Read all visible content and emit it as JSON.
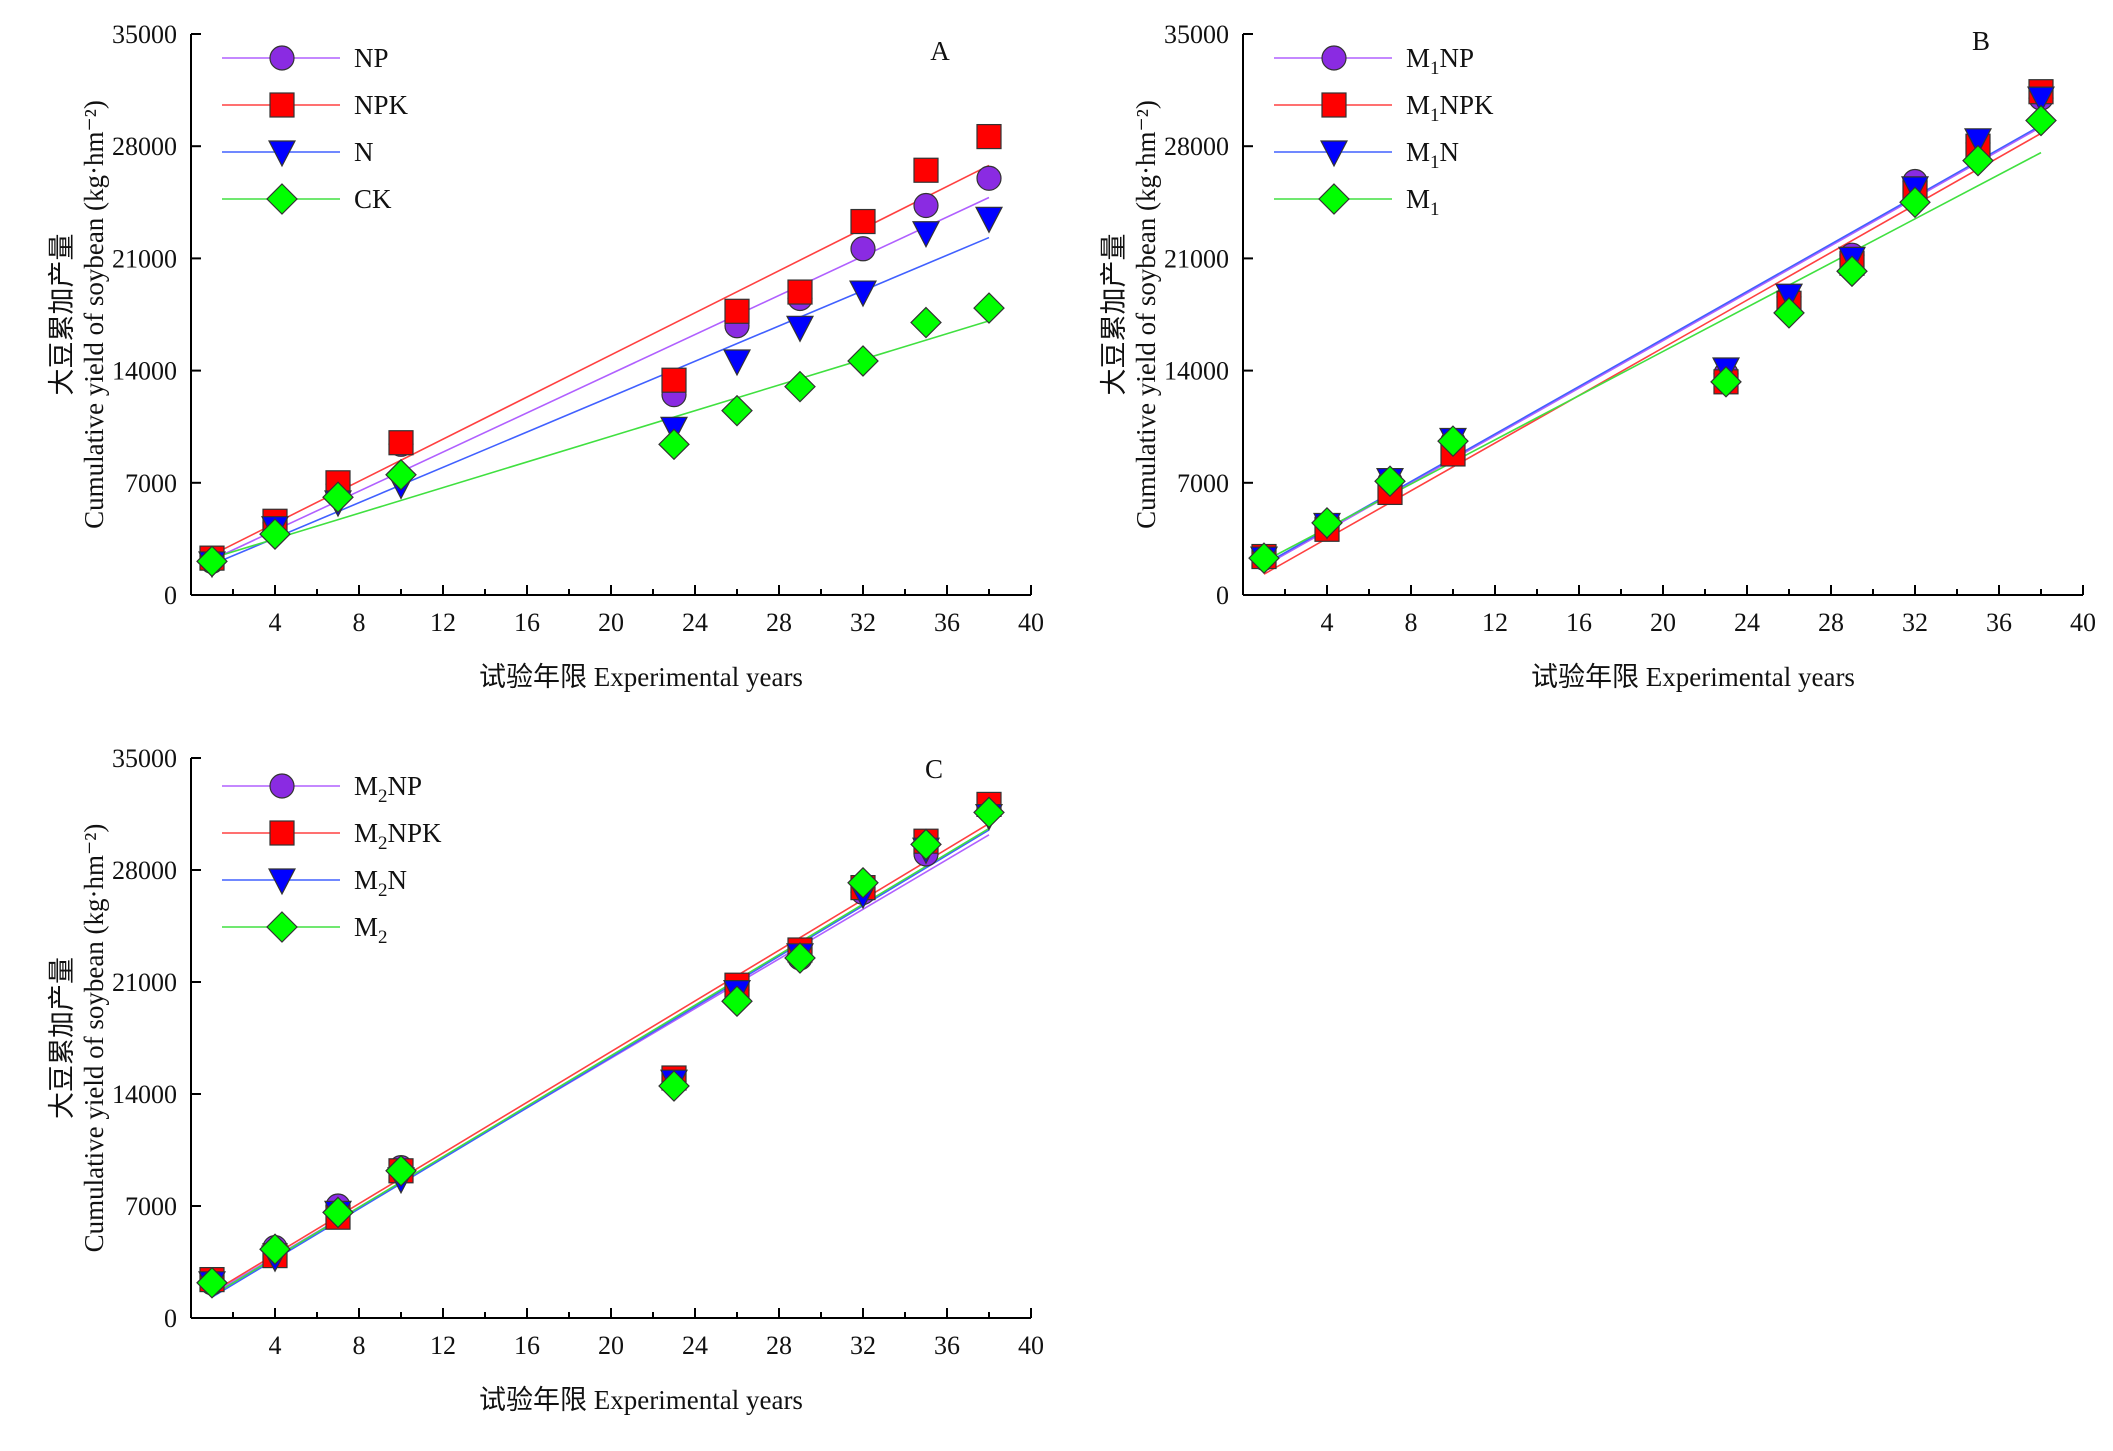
{
  "chart_data": [
    {
      "type": "scatter",
      "panel_label": "A",
      "xlabel": "试验年限 Experimental years",
      "ylabel_cn": "大豆累加产量",
      "ylabel": "Cumulative yield of soybean (kg·hm⁻²)",
      "xlim": [
        0,
        40
      ],
      "ylim": [
        0,
        35000
      ],
      "xticks": [
        4,
        8,
        12,
        16,
        20,
        24,
        28,
        32,
        36,
        40
      ],
      "yticks": [
        0,
        7000,
        14000,
        21000,
        28000,
        35000
      ],
      "series": [
        {
          "name": "NP",
          "marker": "circle",
          "color": "#8a2be2",
          "line_color": "#b060ff",
          "x": [
            1,
            4,
            7,
            10,
            23,
            26,
            29,
            32,
            35,
            38
          ],
          "y": [
            2100,
            4500,
            6900,
            9400,
            12500,
            16800,
            18500,
            21600,
            24300,
            26000
          ],
          "fit": [
            [
              1,
              2200
            ],
            [
              38,
              24800
            ]
          ]
        },
        {
          "name": "NPK",
          "marker": "square",
          "color": "#ff0000",
          "line_color": "#ff4040",
          "x": [
            1,
            4,
            7,
            10,
            23,
            26,
            29,
            32,
            35,
            38
          ],
          "y": [
            2300,
            4600,
            7000,
            9500,
            13400,
            17700,
            18900,
            23300,
            26500,
            28600
          ],
          "fit": [
            [
              1,
              2500
            ],
            [
              38,
              26800
            ]
          ]
        },
        {
          "name": "N",
          "marker": "triangle-down",
          "color": "#0000ff",
          "line_color": "#4060ff",
          "x": [
            1,
            4,
            7,
            10,
            23,
            26,
            29,
            32,
            35,
            38
          ],
          "y": [
            2000,
            4200,
            5800,
            6900,
            10400,
            14600,
            16700,
            18900,
            22600,
            23500
          ],
          "fit": [
            [
              1,
              1900
            ],
            [
              38,
              22300
            ]
          ]
        },
        {
          "name": "CK",
          "marker": "diamond",
          "color": "#00ff00",
          "line_color": "#40e040",
          "x": [
            1,
            4,
            7,
            10,
            23,
            26,
            29,
            32,
            35,
            38
          ],
          "y": [
            2100,
            3800,
            6100,
            7500,
            9400,
            11500,
            13000,
            14600,
            17000,
            17900
          ],
          "fit": [
            [
              1,
              2300
            ],
            [
              38,
              17100
            ]
          ]
        }
      ]
    },
    {
      "type": "scatter",
      "panel_label": "B",
      "xlabel": "试验年限 Experimental years",
      "ylabel_cn": "大豆累加产量",
      "ylabel": "Cumulative yield of soybean (kg·hm⁻²)",
      "xlim": [
        0,
        40
      ],
      "ylim": [
        0,
        35000
      ],
      "xticks": [
        4,
        8,
        12,
        16,
        20,
        24,
        28,
        32,
        36,
        40
      ],
      "yticks": [
        0,
        7000,
        14000,
        21000,
        28000,
        35000
      ],
      "series": [
        {
          "name": "M1NP",
          "name_main": "M",
          "name_sub": "1",
          "name_rest": "NP",
          "marker": "circle",
          "color": "#8a2be2",
          "line_color": "#b060ff",
          "x": [
            1,
            4,
            7,
            10,
            23,
            26,
            29,
            32,
            35,
            38
          ],
          "y": [
            2300,
            4300,
            7100,
            9600,
            13800,
            18600,
            21200,
            25800,
            28200,
            31000
          ],
          "fit": [
            [
              1,
              1800
            ],
            [
              38,
              29200
            ]
          ]
        },
        {
          "name": "M1NPK",
          "name_main": "M",
          "name_sub": "1",
          "name_rest": "NPK",
          "marker": "square",
          "color": "#ff0000",
          "line_color": "#ff4040",
          "x": [
            1,
            4,
            7,
            10,
            23,
            26,
            29,
            32,
            35,
            38
          ],
          "y": [
            2400,
            4100,
            6400,
            8800,
            13300,
            18200,
            20700,
            25200,
            28000,
            31400
          ],
          "fit": [
            [
              1,
              1300
            ],
            [
              38,
              28800
            ]
          ]
        },
        {
          "name": "M1N",
          "name_main": "M",
          "name_sub": "1",
          "name_rest": "N",
          "marker": "triangle-down",
          "color": "#0000ff",
          "line_color": "#4060ff",
          "x": [
            1,
            4,
            7,
            10,
            23,
            26,
            29,
            32,
            35,
            38
          ],
          "y": [
            2300,
            4400,
            7200,
            9700,
            14100,
            18700,
            21000,
            25400,
            28400,
            31000
          ],
          "fit": [
            [
              1,
              1900
            ],
            [
              38,
              29300
            ]
          ]
        },
        {
          "name": "M1",
          "name_main": "M",
          "name_sub": "1",
          "name_rest": "",
          "marker": "diamond",
          "color": "#00ff00",
          "line_color": "#40e040",
          "x": [
            1,
            4,
            7,
            10,
            23,
            26,
            29,
            32,
            35,
            38
          ],
          "y": [
            2300,
            4500,
            7100,
            9600,
            13300,
            17600,
            20200,
            24500,
            27100,
            29600
          ],
          "fit": [
            [
              1,
              2100
            ],
            [
              38,
              27600
            ]
          ]
        }
      ]
    },
    {
      "type": "scatter",
      "panel_label": "C",
      "xlabel": "试验年限 Experimental years",
      "ylabel_cn": "大豆累加产量",
      "ylabel": "Cumulative yield of soybean (kg·hm⁻²)",
      "xlim": [
        0,
        40
      ],
      "ylim": [
        0,
        35000
      ],
      "xticks": [
        4,
        8,
        12,
        16,
        20,
        24,
        28,
        32,
        36,
        40
      ],
      "yticks": [
        0,
        7000,
        14000,
        21000,
        28000,
        35000
      ],
      "series": [
        {
          "name": "M2NP",
          "name_main": "M",
          "name_sub": "2",
          "name_rest": "NP",
          "marker": "circle",
          "color": "#8a2be2",
          "line_color": "#b060ff",
          "x": [
            1,
            4,
            7,
            10,
            23,
            26,
            29,
            32,
            35,
            38
          ],
          "y": [
            2200,
            4400,
            7000,
            9400,
            14800,
            20500,
            22500,
            26600,
            29000,
            31800
          ],
          "fit": [
            [
              1,
              1500
            ],
            [
              38,
              30200
            ]
          ]
        },
        {
          "name": "M2NPK",
          "name_main": "M",
          "name_sub": "2",
          "name_rest": "NPK",
          "marker": "square",
          "color": "#ff0000",
          "line_color": "#ff4040",
          "x": [
            1,
            4,
            7,
            10,
            23,
            26,
            29,
            32,
            35,
            38
          ],
          "y": [
            2400,
            3900,
            6300,
            9200,
            15000,
            20800,
            23000,
            26900,
            29800,
            32100
          ],
          "fit": [
            [
              1,
              1600
            ],
            [
              38,
              30900
            ]
          ]
        },
        {
          "name": "M2N",
          "name_main": "M",
          "name_sub": "2",
          "name_rest": "N",
          "marker": "triangle-down",
          "color": "#0000ff",
          "line_color": "#4060ff",
          "x": [
            1,
            4,
            7,
            10,
            23,
            26,
            29,
            32,
            35,
            38
          ],
          "y": [
            2200,
            3800,
            6600,
            8700,
            14800,
            20400,
            22700,
            26500,
            29300,
            31400
          ],
          "fit": [
            [
              1,
              1300
            ],
            [
              38,
              30500
            ]
          ]
        },
        {
          "name": "M2",
          "name_main": "M",
          "name_sub": "2",
          "name_rest": "",
          "marker": "diamond",
          "color": "#00ff00",
          "line_color": "#40e040",
          "x": [
            1,
            4,
            7,
            10,
            23,
            26,
            29,
            32,
            35,
            38
          ],
          "y": [
            2200,
            4300,
            6600,
            9200,
            14500,
            19800,
            22500,
            27200,
            29600,
            31600
          ],
          "fit": [
            [
              1,
              1400
            ],
            [
              38,
              30600
            ]
          ]
        }
      ]
    }
  ]
}
